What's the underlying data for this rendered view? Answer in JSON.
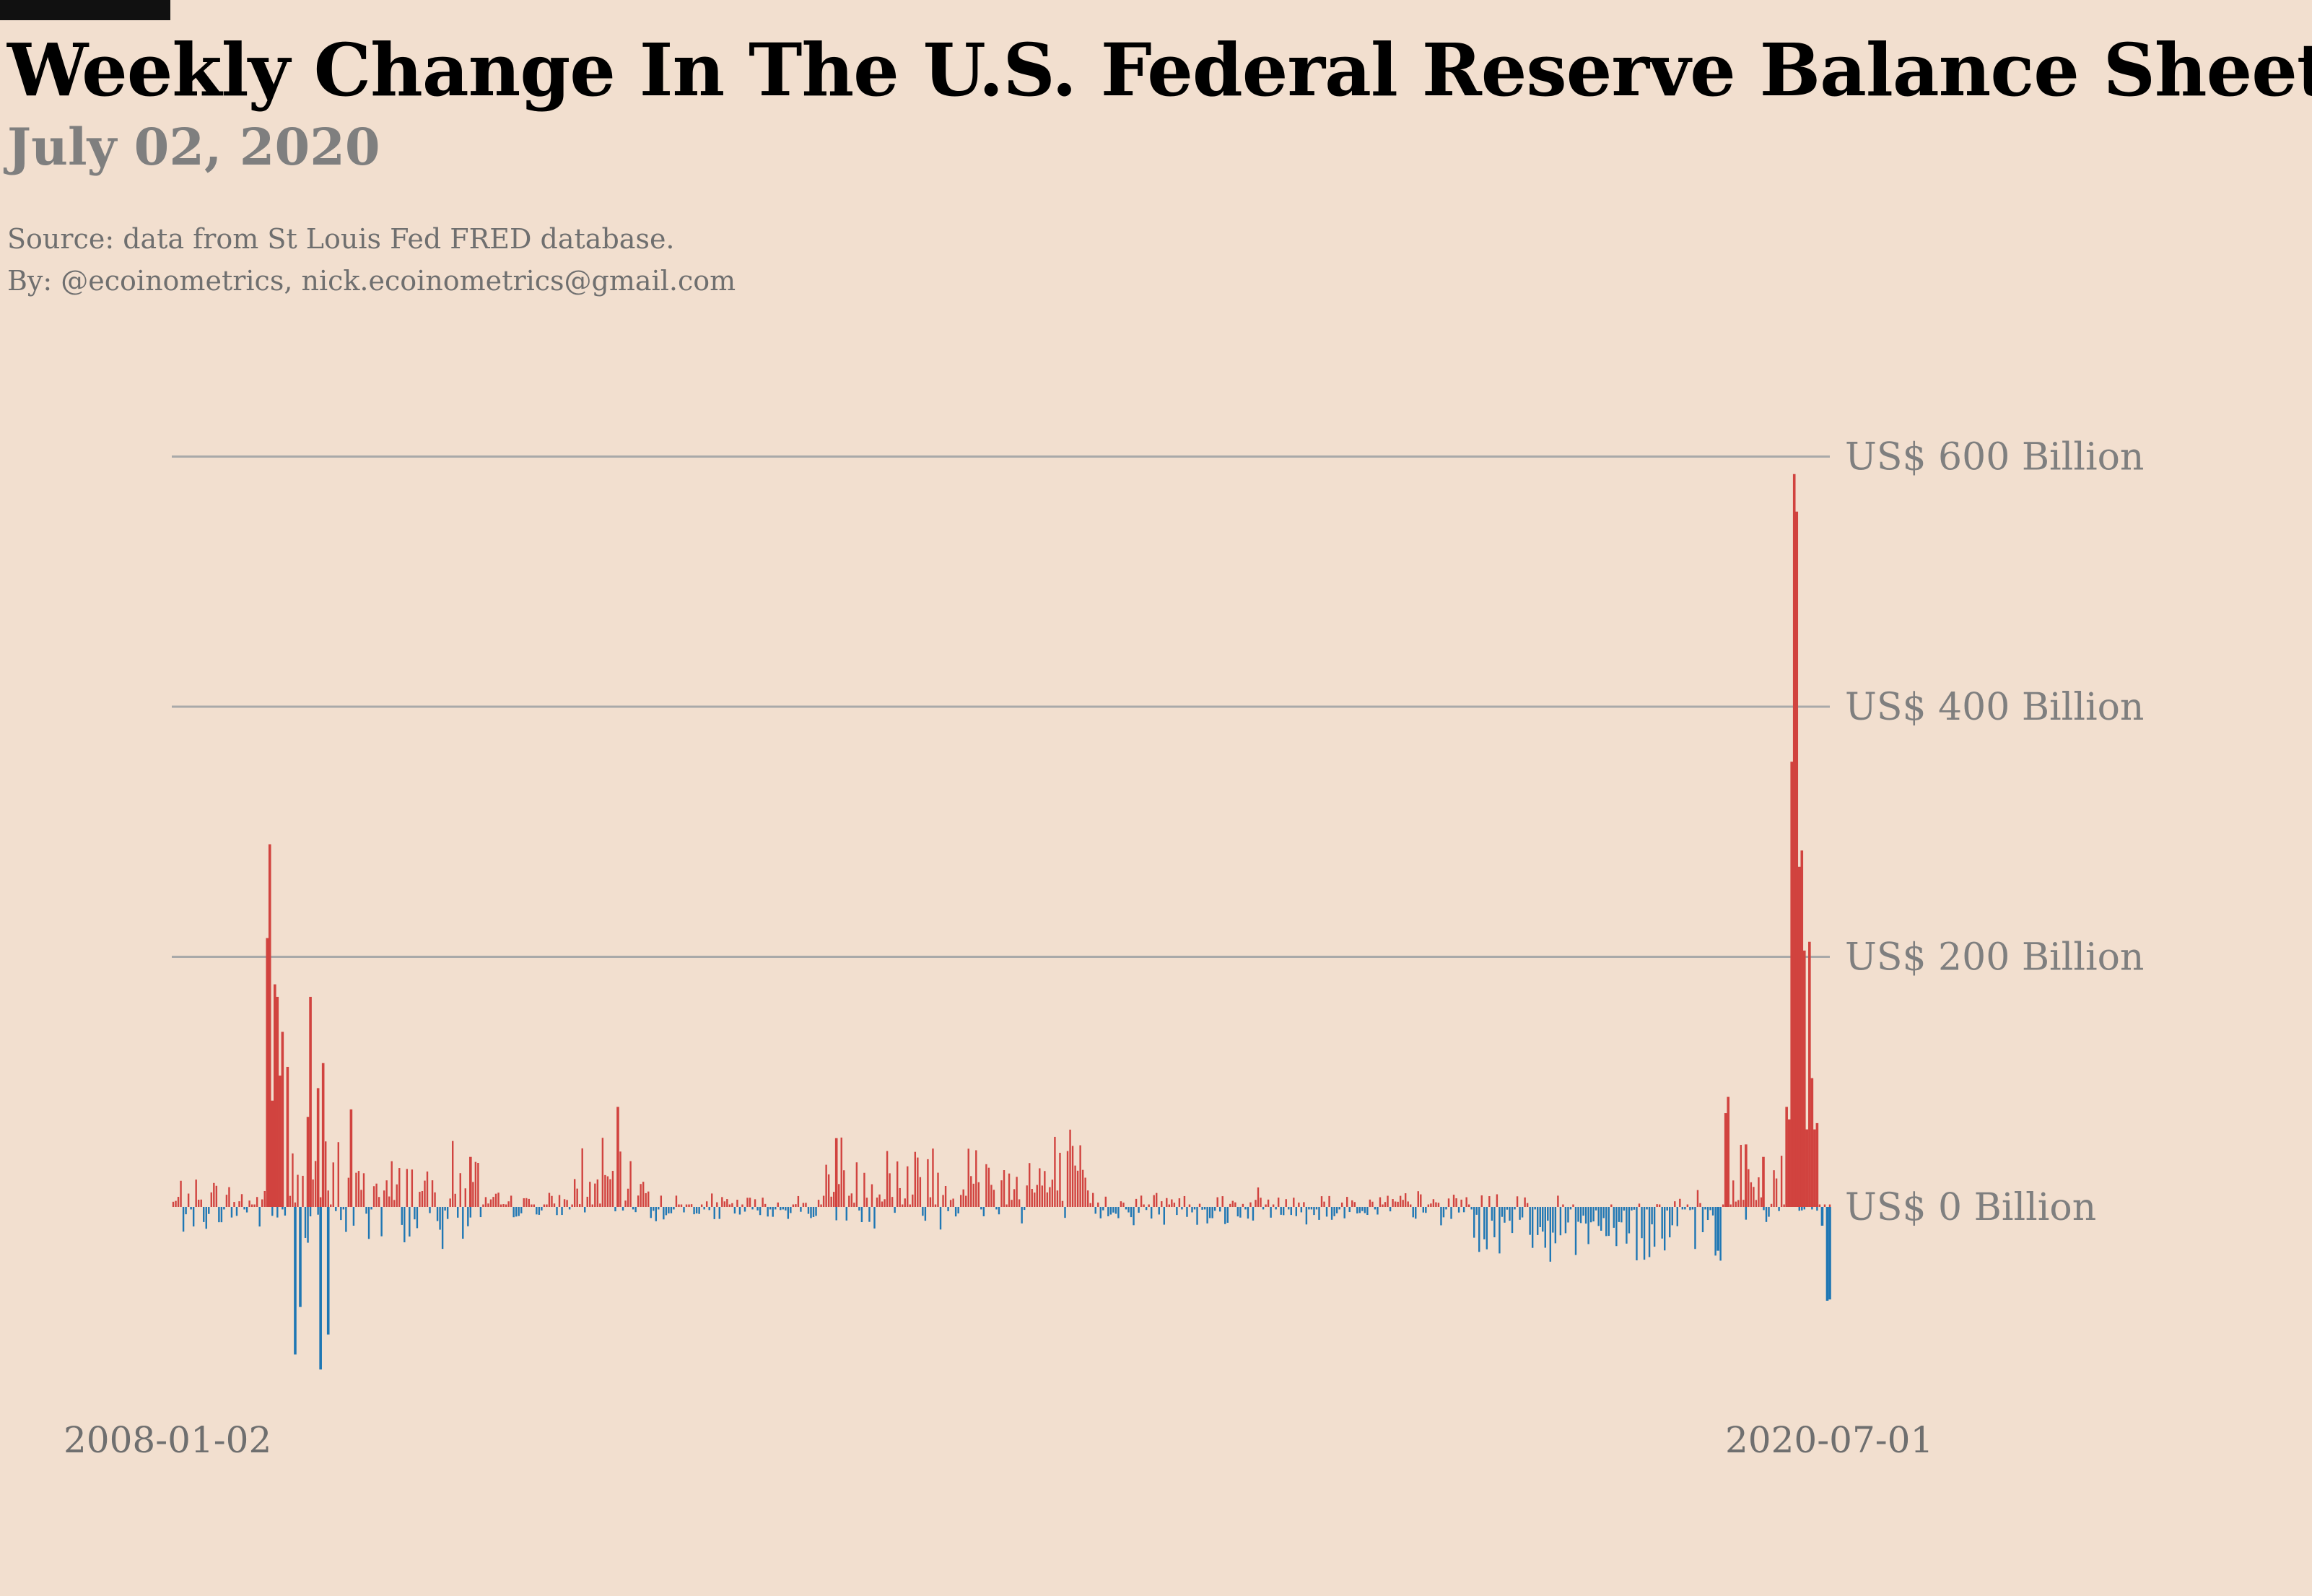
{
  "title": "Weekly Change In The U.S. Federal Reserve Balance Sheet",
  "subtitle": "July 02, 2020",
  "source_line": "Source: data from  St Louis Fed FRED database.",
  "byline": "By: @ecoinometrics, nick.ecoinometrics@gmail.com",
  "colors": {
    "background": "#f2dfcf",
    "positive": "#d1433f",
    "negative": "#1f77b4",
    "grid": "#a9a9a9"
  },
  "chart_data": {
    "type": "bar",
    "title": "Weekly Change In The U.S. Federal Reserve Balance Sheet",
    "xlabel": "",
    "ylabel": "",
    "unit": "US$ Billion",
    "ylim": [
      -140,
      600
    ],
    "yticks": [
      0,
      200,
      400,
      600
    ],
    "ytick_labels": [
      "US$ 0 Billion",
      "US$ 200 Billion",
      "US$ 400 Billion",
      "US$ 600 Billion"
    ],
    "x_range": [
      "2008-01-02",
      "2020-07-01"
    ],
    "xtick_labels": [
      "2008-01-02",
      "2020-07-01"
    ],
    "grid": true,
    "key_points": [
      {
        "date": "2008-09-17",
        "value": 215
      },
      {
        "date": "2008-09-24",
        "value": 290
      },
      {
        "date": "2008-10-01",
        "value": 85
      },
      {
        "date": "2008-10-08",
        "value": 178
      },
      {
        "date": "2008-10-15",
        "value": 168
      },
      {
        "date": "2008-10-22",
        "value": 105
      },
      {
        "date": "2008-10-29",
        "value": 140
      },
      {
        "date": "2008-11-12",
        "value": 112
      },
      {
        "date": "2008-12-03",
        "value": -118
      },
      {
        "date": "2008-12-17",
        "value": -80
      },
      {
        "date": "2009-01-07",
        "value": 72
      },
      {
        "date": "2009-01-14",
        "value": 168
      },
      {
        "date": "2009-02-04",
        "value": 95
      },
      {
        "date": "2009-02-11",
        "value": -130
      },
      {
        "date": "2009-02-18",
        "value": 115
      },
      {
        "date": "2009-03-04",
        "value": -102
      },
      {
        "date": "2009-05-06",
        "value": 78
      },
      {
        "date": "2010-03-31",
        "value": 40
      },
      {
        "date": "2011-05-11",
        "value": 80
      },
      {
        "date": "2013-01-02",
        "value": 55
      },
      {
        "date": "2019-08-28",
        "value": -35
      },
      {
        "date": "2019-09-18",
        "value": 75
      },
      {
        "date": "2019-09-25",
        "value": 88
      },
      {
        "date": "2019-11-13",
        "value": 50
      },
      {
        "date": "2019-12-31",
        "value": 40
      },
      {
        "date": "2020-03-04",
        "value": 80
      },
      {
        "date": "2020-03-11",
        "value": 70
      },
      {
        "date": "2020-03-18",
        "value": 356
      },
      {
        "date": "2020-03-25",
        "value": 586
      },
      {
        "date": "2020-04-01",
        "value": 556
      },
      {
        "date": "2020-04-08",
        "value": 272
      },
      {
        "date": "2020-04-15",
        "value": 285
      },
      {
        "date": "2020-04-22",
        "value": 205
      },
      {
        "date": "2020-04-29",
        "value": 62
      },
      {
        "date": "2020-05-06",
        "value": 212
      },
      {
        "date": "2020-05-13",
        "value": 103
      },
      {
        "date": "2020-05-20",
        "value": 62
      },
      {
        "date": "2020-05-27",
        "value": 67
      },
      {
        "date": "2020-06-10",
        "value": -15
      },
      {
        "date": "2020-06-24",
        "value": -75
      },
      {
        "date": "2020-07-01",
        "value": -74
      }
    ]
  }
}
